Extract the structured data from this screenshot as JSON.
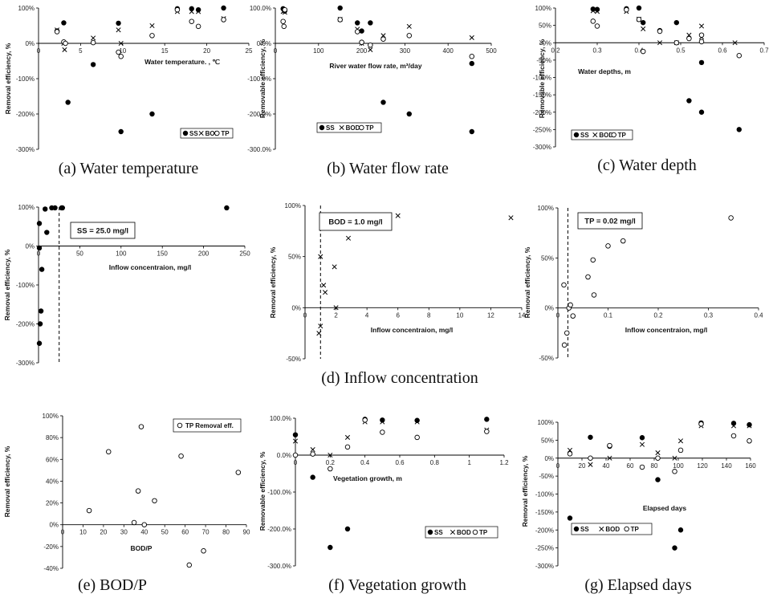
{
  "legend_labels": {
    "ss": "SS",
    "bod": "BOD",
    "tp": "TP"
  },
  "chart_data": [
    {
      "id": "a",
      "type": "scatter",
      "caption": "(a) Water temperature",
      "xlabel": "Water temperature. , ℃",
      "ylabel": "Removal efficiency, %",
      "xlim": [
        0,
        25
      ],
      "ylim": [
        -300,
        100
      ],
      "xticks": [
        "0",
        "5",
        "10",
        "15",
        "20",
        "25"
      ],
      "yticks": [
        "-300%",
        "-200%",
        "-100%",
        "0%",
        "100%"
      ],
      "legend": [
        "SS",
        "BOD",
        "TP"
      ],
      "series": [
        {
          "name": "SS",
          "marker": "dot",
          "x": [
            2.2,
            3,
            3.5,
            6.5,
            9.5,
            9.8,
            13.5,
            16.5,
            18.2,
            19,
            22
          ],
          "y": [
            35,
            58,
            -167,
            -60,
            57,
            -250,
            -200,
            98,
            98,
            95,
            100
          ]
        },
        {
          "name": "BOD",
          "marker": "x",
          "x": [
            2.2,
            3,
            3.1,
            6.5,
            9.5,
            9.8,
            13.5,
            16.5,
            18.2,
            19,
            22
          ],
          "y": [
            38,
            0,
            -18,
            15,
            38,
            0,
            50,
            90,
            90,
            90,
            70
          ]
        },
        {
          "name": "TP",
          "marker": "circle",
          "x": [
            2.2,
            3,
            3.2,
            6.5,
            9.5,
            9.8,
            13.5,
            16.5,
            18.2,
            19,
            22
          ],
          "y": [
            33,
            4,
            0,
            2,
            -25,
            -37,
            22,
            95,
            62,
            48,
            67
          ]
        }
      ]
    },
    {
      "id": "b",
      "type": "scatter",
      "caption": "(b) Water flow rate",
      "xlabel": "River water flow rate, m³/day",
      "ylabel": "Removable efficiency, %",
      "xlim": [
        0,
        500
      ],
      "ylim": [
        -300,
        100
      ],
      "xticks": [
        "0",
        "100",
        "200",
        "300",
        "400",
        "500"
      ],
      "yticks": [
        "-300.0%",
        "-200.0%",
        "-100.0%",
        "0.0%",
        "100.0%"
      ],
      "legend": [
        "SS",
        "BOD",
        "TP"
      ],
      "series": [
        {
          "name": "SS",
          "marker": "dot",
          "x": [
            18,
            20,
            22,
            150,
            190,
            200,
            220,
            250,
            310,
            455
          ],
          "y": [
            98,
            95,
            92,
            100,
            58,
            35,
            58,
            -167,
            -200,
            -250
          ]
        },
        {
          "name": "BOD",
          "marker": "x",
          "x": [
            18,
            20,
            22,
            150,
            190,
            200,
            220,
            250,
            310,
            455
          ],
          "y": [
            90,
            92,
            88,
            68,
            40,
            0,
            -18,
            22,
            48,
            16
          ]
        },
        {
          "name": "TP",
          "marker": "circle",
          "x": [
            18,
            20,
            22,
            150,
            190,
            200,
            220,
            250,
            310,
            455
          ],
          "y": [
            62,
            48,
            95,
            67,
            33,
            3,
            -5,
            12,
            22,
            -37
          ]
        }
      ],
      "extra": [
        {
          "series": "SS",
          "x": 455,
          "y": -57
        }
      ]
    },
    {
      "id": "c",
      "type": "scatter",
      "caption": "(c) Water depth",
      "xlabel": "Water depths, m",
      "ylabel": "Removable efficiency, %",
      "xlim": [
        0.2,
        0.7
      ],
      "ylim": [
        -300,
        100
      ],
      "xticks": [
        "0.2",
        "0.3",
        "0.4",
        "0.5",
        "0.6",
        "0.7"
      ],
      "yticks": [
        "-300%",
        "-250%",
        "-200%",
        "-150%",
        "-100%",
        "-50%",
        "0%",
        "50%",
        "100%"
      ],
      "legend": [
        "SS",
        "BOD",
        "TP"
      ],
      "series": [
        {
          "name": "SS",
          "marker": "dot",
          "x": [
            0.29,
            0.3,
            0.37,
            0.4,
            0.41,
            0.45,
            0.49,
            0.52,
            0.55,
            0.55,
            0.64
          ],
          "y": [
            97,
            96,
            98,
            100,
            58,
            35,
            58,
            -167,
            -57,
            -200,
            -250
          ]
        },
        {
          "name": "BOD",
          "marker": "x",
          "x": [
            0.29,
            0.3,
            0.37,
            0.4,
            0.41,
            0.45,
            0.49,
            0.52,
            0.55,
            0.55,
            0.63
          ],
          "y": [
            92,
            90,
            90,
            68,
            40,
            0,
            0,
            22,
            48,
            16,
            0
          ]
        },
        {
          "name": "TP",
          "marker": "circle",
          "x": [
            0.29,
            0.3,
            0.37,
            0.4,
            0.41,
            0.45,
            0.49,
            0.52,
            0.55,
            0.55,
            0.64
          ],
          "y": [
            62,
            48,
            95,
            67,
            -25,
            33,
            0,
            12,
            22,
            3,
            -37
          ]
        }
      ]
    },
    {
      "id": "d1",
      "type": "scatter",
      "caption": "",
      "xlabel": "Inflow concentraion, mg/l",
      "ylabel": "Removal efficiency, %",
      "xlim": [
        0,
        250
      ],
      "ylim": [
        -300,
        100
      ],
      "xticks": [
        "0",
        "50",
        "100",
        "150",
        "200",
        "250"
      ],
      "yticks": [
        "-300%",
        "-200%",
        "-100%",
        "0%",
        "100%"
      ],
      "threshold": {
        "x": 25,
        "label": "SS = 25.0 mg/l"
      },
      "series": [
        {
          "name": "SS",
          "marker": "dot",
          "x": [
            1,
            2,
            3,
            4,
            1,
            1,
            8,
            10,
            16,
            20,
            28,
            29,
            228
          ],
          "y": [
            -250,
            -200,
            -167,
            -60,
            -5,
            58,
            95,
            35,
            98,
            98,
            98,
            98,
            98
          ]
        }
      ]
    },
    {
      "id": "d2",
      "type": "scatter",
      "caption": "(d) Inflow concentration",
      "xlabel": "Inflow concentraion, mg/l",
      "ylabel": "Removal efficiency, %",
      "xlim": [
        0,
        14
      ],
      "ylim": [
        -50,
        100
      ],
      "xticks": [
        "0",
        "2",
        "4",
        "6",
        "8",
        "10",
        "12",
        "14"
      ],
      "yticks": [
        "-50%",
        "0%",
        "50%",
        "100%"
      ],
      "threshold": {
        "x": 1.0,
        "label": "BOD = 1.0 mg/l"
      },
      "series": [
        {
          "name": "BOD",
          "marker": "x",
          "x": [
            0.9,
            1,
            1,
            1.2,
            1.3,
            1.9,
            2,
            2.8,
            6,
            13.3
          ],
          "y": [
            -25,
            -18,
            50,
            22,
            15,
            40,
            0,
            68,
            90,
            88
          ]
        }
      ]
    },
    {
      "id": "d3",
      "type": "scatter",
      "caption": "",
      "xlabel": "Inflow concentraion, mg/l",
      "ylabel": "Removal efficiency, %",
      "xlim": [
        0,
        0.4
      ],
      "ylim": [
        -50,
        100
      ],
      "xticks": [
        "0",
        "0.1",
        "0.2",
        "0.3",
        "0.4"
      ],
      "yticks": [
        "-50%",
        "0%",
        "50%",
        "100%"
      ],
      "threshold": {
        "x": 0.02,
        "label": "TP = 0.02 mg/l"
      },
      "series": [
        {
          "name": "TP",
          "marker": "circle",
          "x": [
            0.012,
            0.013,
            0.018,
            0.022,
            0.025,
            0.03,
            0.06,
            0.07,
            0.072,
            0.1,
            0.13,
            0.345
          ],
          "y": [
            23,
            -37,
            -25,
            0,
            3,
            -8,
            31,
            48,
            13,
            62,
            67,
            90
          ]
        }
      ]
    },
    {
      "id": "e",
      "type": "scatter",
      "caption": "(e) BOD/P",
      "xlabel": "BOD/P",
      "ylabel": "Removal efficiency, %",
      "xlim": [
        0,
        90
      ],
      "ylim": [
        -40,
        100
      ],
      "xticks": [
        "0",
        "10",
        "20",
        "30",
        "40",
        "50",
        "60",
        "70",
        "80",
        "90"
      ],
      "yticks": [
        "-40%",
        "-20%",
        "0%",
        "20%",
        "40%",
        "60%",
        "80%",
        "100%"
      ],
      "legend": [
        "TP Removal eff."
      ],
      "series": [
        {
          "name": "TP Removal eff.",
          "marker": "circle",
          "x": [
            13,
            22.5,
            35,
            37,
            38.5,
            40,
            45,
            58,
            62,
            69,
            86
          ],
          "y": [
            13,
            67,
            2,
            31,
            90,
            0,
            22,
            63,
            -37,
            -24,
            48
          ]
        }
      ]
    },
    {
      "id": "f",
      "type": "scatter",
      "caption": "(f) Vegetation growth",
      "xlabel": "Vegetation growth, m",
      "ylabel": "Removable efficiency, %",
      "xlim": [
        0,
        1.2
      ],
      "ylim": [
        -300,
        100
      ],
      "xticks": [
        "0",
        "0.2",
        "0.4",
        "0.6",
        "0.8",
        "1",
        "1.2"
      ],
      "yticks": [
        "-300.0%",
        "-200.0%",
        "-100.0%",
        "0.0%",
        "100.0%"
      ],
      "legend": [
        "SS",
        "BOD",
        "TP"
      ],
      "series": [
        {
          "name": "SS",
          "marker": "dot",
          "x": [
            0,
            0.1,
            0.2,
            0.3,
            0.4,
            0.5,
            0.7,
            1.1
          ],
          "y": [
            55,
            -60,
            -250,
            -200,
            97,
            95,
            94,
            97
          ]
        },
        {
          "name": "BOD",
          "marker": "x",
          "x": [
            0,
            0.1,
            0.2,
            0.3,
            0.4,
            0.5,
            0.7,
            1.1
          ],
          "y": [
            38,
            15,
            0,
            48,
            90,
            90,
            90,
            68
          ]
        },
        {
          "name": "TP",
          "marker": "circle",
          "x": [
            0,
            0.1,
            0.2,
            0.3,
            0.4,
            0.5,
            0.7,
            1.1
          ],
          "y": [
            0,
            3,
            -37,
            22,
            95,
            62,
            48,
            64
          ]
        }
      ]
    },
    {
      "id": "g",
      "type": "scatter",
      "caption": "(g) Elapsed days",
      "xlabel": "Elapsed days",
      "ylabel": "Removal efficiency, %",
      "xlim": [
        0,
        160
      ],
      "ylim": [
        -300,
        100
      ],
      "xticks": [
        "0",
        "20",
        "40",
        "60",
        "80",
        "100",
        "120",
        "140",
        "160"
      ],
      "yticks": [
        "-300%",
        "-250%",
        "-200%",
        "-150%",
        "-100%",
        "-50%",
        "0%",
        "50%",
        "100%"
      ],
      "legend": [
        "SS",
        "BOD",
        "TP"
      ],
      "series": [
        {
          "name": "SS",
          "marker": "dot",
          "x": [
            10,
            27,
            43,
            70,
            83,
            97,
            102,
            119,
            146,
            159
          ],
          "y": [
            -167,
            58,
            33,
            57,
            -60,
            -250,
            -200,
            98,
            97,
            93
          ]
        },
        {
          "name": "BOD",
          "marker": "x",
          "x": [
            10,
            27,
            43,
            70,
            83,
            97,
            102,
            119,
            146,
            159
          ],
          "y": [
            22,
            -18,
            0,
            38,
            15,
            0,
            48,
            90,
            90,
            90
          ]
        },
        {
          "name": "TP",
          "marker": "circle",
          "x": [
            10,
            27,
            43,
            70,
            83,
            97,
            102,
            119,
            146,
            159
          ],
          "y": [
            12,
            0,
            35,
            -25,
            0,
            -37,
            22,
            95,
            62,
            48
          ]
        }
      ]
    }
  ]
}
